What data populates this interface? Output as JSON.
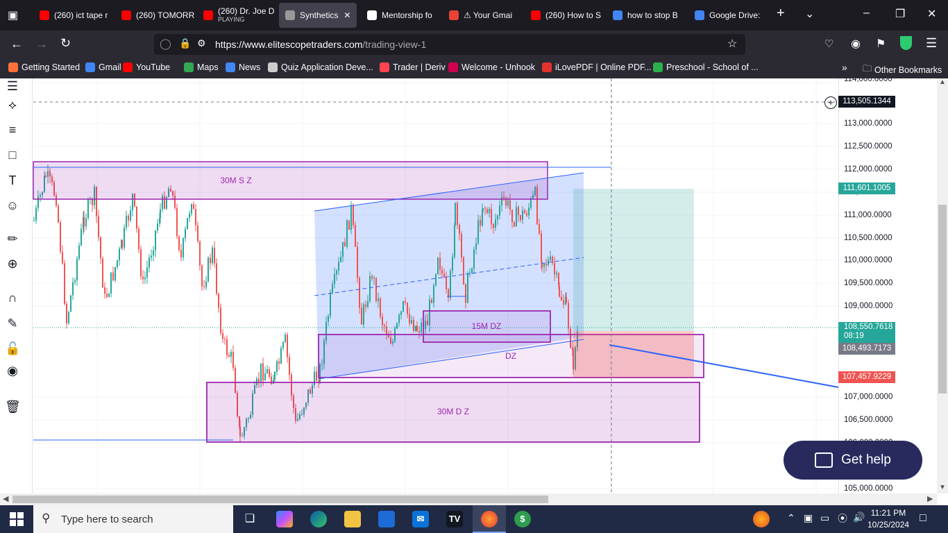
{
  "browser": {
    "tabs": [
      {
        "title": "(260) ict tape r",
        "icon": "youtube-icon",
        "color": "#ff0000"
      },
      {
        "title": "(260) TOMORR",
        "icon": "youtube-icon",
        "color": "#ff0000"
      },
      {
        "title": "(260) Dr. Joe D",
        "subtitle": "PLAYING",
        "icon": "youtube-icon",
        "color": "#ff0000"
      },
      {
        "title": "Synthetics",
        "icon": "tradingview-icon",
        "color": "#999999",
        "active": true
      },
      {
        "title": "Mentorship fo",
        "icon": "openai-icon",
        "color": "#ffffff"
      },
      {
        "title": "⚠ Your Gmai",
        "icon": "gmail-icon",
        "color": "#ea4335"
      },
      {
        "title": "(260) How to S",
        "icon": "youtube-icon",
        "color": "#ff0000"
      },
      {
        "title": "how to stop B",
        "icon": "google-icon",
        "color": "#4285f4"
      },
      {
        "title": "Google Drive: ",
        "icon": "google-icon",
        "color": "#4285f4"
      }
    ],
    "url_host": "https://www.elitescopetraders.com",
    "url_path": "/trading-view-1",
    "bookmarks": [
      {
        "label": "Getting Started",
        "color": "#ff7139"
      },
      {
        "label": "Gmail",
        "color": "#4285f4"
      },
      {
        "label": "YouTube",
        "color": "#ff0000"
      },
      {
        "label": "Maps",
        "color": "#34a853"
      },
      {
        "label": "News",
        "color": "#4285f4"
      },
      {
        "label": "Quiz Application Deve...",
        "color": "#cccccc"
      },
      {
        "label": "Trader | Deriv",
        "color": "#ff444f"
      },
      {
        "label": "Welcome - Unhook",
        "color": "#d1004f"
      },
      {
        "label": "iLovePDF | Online PDF...",
        "color": "#e5322d"
      },
      {
        "label": "Preschool - School of ...",
        "color": "#2bb24c"
      }
    ],
    "other_bookmarks": "Other Bookmarks"
  },
  "chart": {
    "price_labels": [
      "114,000.0000",
      "113,000.0000",
      "112,500.0000",
      "112,000.0000",
      "111,500.0000",
      "111,000.0000",
      "110,500.0000",
      "110,000.0000",
      "109,500.0000",
      "109,000.0000",
      "107,000.0000",
      "106,500.0000",
      "106,000.0000",
      "105,000.0000"
    ],
    "crosshair_price": "113,505.1344",
    "target_price": "111,601.1005",
    "current_price": "108,550.7618",
    "countdown": "08:19",
    "entry_price": "108,493.7173",
    "stop_price": "107,457.9229",
    "zones": {
      "supply_30m": "30M S Z",
      "demand_15m": "15M DZ",
      "demand": "DZ",
      "demand_30m": "30M D Z"
    },
    "colors": {
      "up": "#26a69a",
      "down": "#ef5350",
      "zone": "#9c27b0",
      "target": "#26a69a",
      "stop": "#ef5350",
      "channel": "#2962ff"
    }
  },
  "help_button": "Get help",
  "taskbar": {
    "search_placeholder": "Type here to search",
    "time": "11:21 PM",
    "date": "10/25/2024"
  }
}
